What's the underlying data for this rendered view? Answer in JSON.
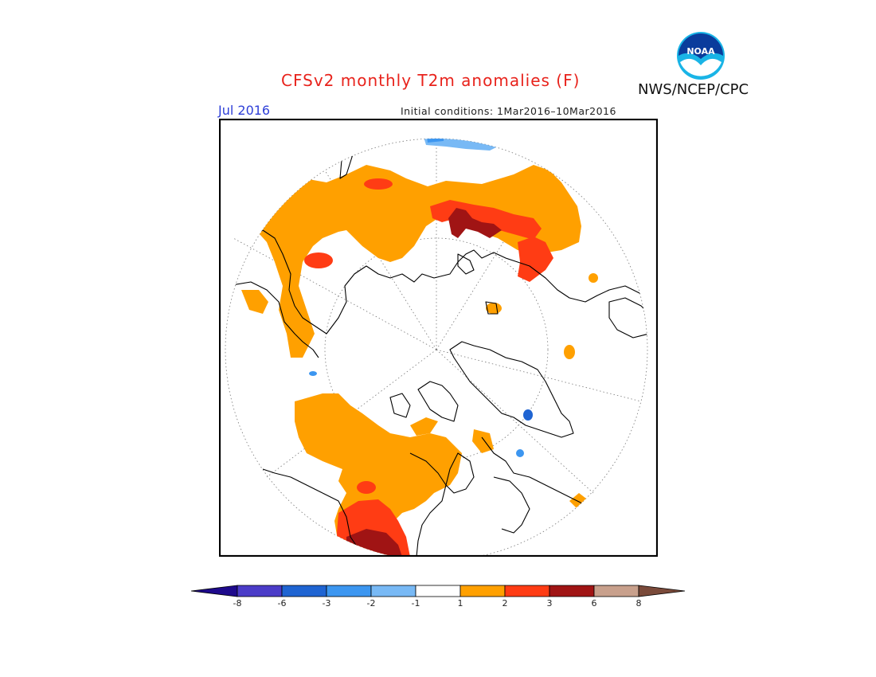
{
  "header": {
    "title": "CFSv2 monthly T2m anomalies (F)",
    "period": "Jul 2016",
    "initial_conditions": "Initial conditions: 1Mar2016–10Mar2016",
    "agency": "NWS/NCEP/CPC",
    "logo_icon": "noaa-logo-icon",
    "logo_text": "NOAA"
  },
  "map": {
    "projection": "north polar stereographic",
    "grid_style": "dotted",
    "coastline_color": "#000000"
  },
  "legend": {
    "ticks": [
      "-8",
      "-6",
      "-3",
      "-2",
      "-1",
      "1",
      "2",
      "3",
      "6",
      "8"
    ],
    "colors": [
      "#1e0a8c",
      "#4b3cc8",
      "#1f64d2",
      "#3c96f0",
      "#78b9f5",
      "#ffffff",
      "#ffa000",
      "#ff3c14",
      "#a01414",
      "#c8a08c",
      "#7a4a3a"
    ]
  }
}
